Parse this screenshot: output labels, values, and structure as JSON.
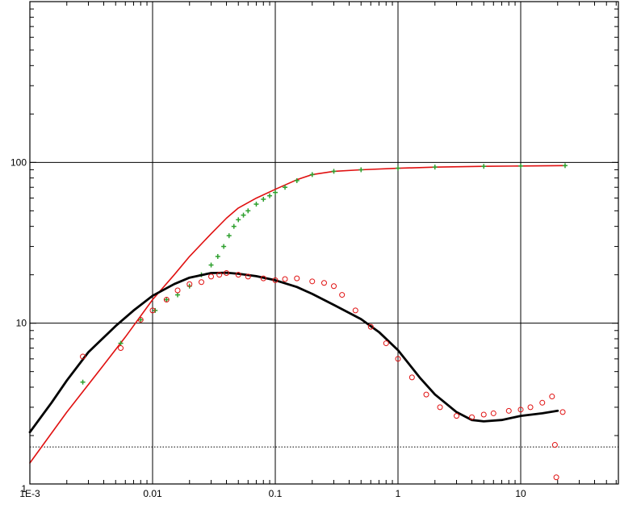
{
  "chart_data": {
    "type": "scatter",
    "title": "",
    "xlabel": "",
    "ylabel": "",
    "xscale": "log",
    "yscale": "log",
    "xlim": [
      0.001,
      60
    ],
    "ylim": [
      1,
      1000
    ],
    "grid": true,
    "legend": "none",
    "x_ticks": [
      {
        "value": 0.001,
        "label": "1E-3"
      },
      {
        "value": 0.01,
        "label": "0.01"
      },
      {
        "value": 0.1,
        "label": "0.1"
      },
      {
        "value": 1,
        "label": "1"
      },
      {
        "value": 10,
        "label": "10"
      }
    ],
    "y_ticks": [
      {
        "value": 1,
        "label": "1"
      },
      {
        "value": 10,
        "label": "10"
      },
      {
        "value": 100,
        "label": "100"
      }
    ],
    "reference_line": {
      "y": 1.7,
      "style": "dotted"
    },
    "series": [
      {
        "kind": "line",
        "color": "#e01010",
        "x": [
          0.001,
          0.002,
          0.004,
          0.006,
          0.01,
          0.015,
          0.02,
          0.03,
          0.04,
          0.05,
          0.07,
          0.1,
          0.15,
          0.2,
          0.3,
          0.5,
          1,
          2,
          5,
          10,
          23
        ],
        "y": [
          1.35,
          2.8,
          5.5,
          8.2,
          14,
          20,
          26,
          36,
          45,
          52,
          60,
          68,
          78,
          84,
          88,
          90,
          92,
          93.5,
          94.5,
          95,
          95.5
        ]
      },
      {
        "kind": "points",
        "marker": "plus",
        "color": "#2ea02e",
        "x": [
          0.0027,
          0.0055,
          0.008,
          0.0105,
          0.013,
          0.016,
          0.02,
          0.025,
          0.03,
          0.034,
          0.038,
          0.042,
          0.046,
          0.05,
          0.055,
          0.06,
          0.07,
          0.08,
          0.09,
          0.1,
          0.12,
          0.15,
          0.2,
          0.3,
          0.5,
          1,
          2,
          5,
          10,
          23
        ],
        "y": [
          4.3,
          7.5,
          10.5,
          12,
          14,
          15,
          17,
          20,
          23,
          26,
          30,
          35,
          40,
          44,
          47,
          50,
          55,
          59,
          62,
          65,
          70,
          77,
          84,
          88,
          90,
          92,
          93.5,
          94.5,
          95,
          95.5
        ]
      },
      {
        "kind": "line",
        "color": "#000000",
        "x": [
          0.001,
          0.0015,
          0.002,
          0.003,
          0.005,
          0.007,
          0.01,
          0.015,
          0.02,
          0.03,
          0.04,
          0.05,
          0.07,
          0.1,
          0.15,
          0.2,
          0.3,
          0.5,
          0.7,
          1,
          1.5,
          2,
          3,
          4,
          5,
          7,
          10,
          15,
          20
        ],
        "y": [
          2.1,
          3.2,
          4.4,
          6.6,
          9.6,
          12,
          14.8,
          17.5,
          19.2,
          20.5,
          20.6,
          20.3,
          19.6,
          18.5,
          16.8,
          15.2,
          13,
          10.6,
          8.8,
          6.8,
          4.6,
          3.6,
          2.8,
          2.5,
          2.45,
          2.5,
          2.65,
          2.75,
          2.85
        ]
      },
      {
        "kind": "points",
        "marker": "circle",
        "color": "#e01010",
        "x": [
          0.0027,
          0.0055,
          0.008,
          0.01,
          0.013,
          0.016,
          0.02,
          0.025,
          0.03,
          0.035,
          0.04,
          0.05,
          0.06,
          0.08,
          0.1,
          0.12,
          0.15,
          0.2,
          0.25,
          0.3,
          0.35,
          0.45,
          0.6,
          0.8,
          1,
          1.3,
          1.7,
          2.2,
          3,
          4,
          5,
          6,
          8,
          10,
          12,
          15,
          18,
          19,
          19.5,
          22
        ],
        "y": [
          6.2,
          7,
          10.5,
          12,
          14,
          16,
          17.5,
          18,
          19.5,
          20,
          20.5,
          20,
          19.5,
          19,
          18.5,
          18.8,
          19,
          18.2,
          17.8,
          17,
          15,
          12,
          9.5,
          7.5,
          6,
          4.6,
          3.6,
          3,
          2.65,
          2.6,
          2.7,
          2.75,
          2.85,
          2.9,
          3,
          3.2,
          3.5,
          1.75,
          1.1,
          2.8
        ]
      }
    ]
  }
}
